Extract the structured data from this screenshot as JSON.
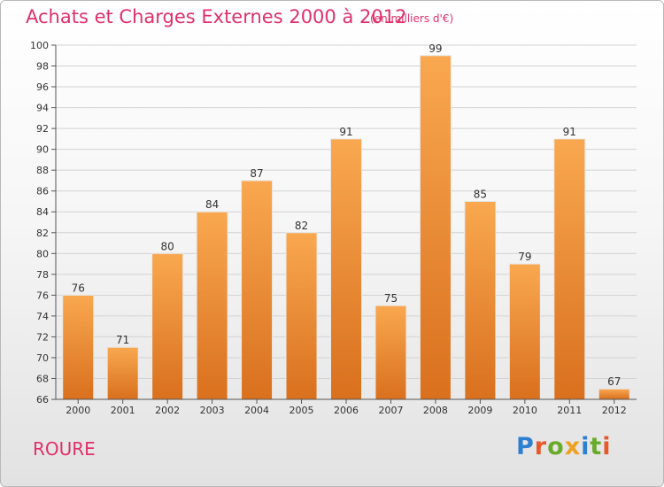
{
  "header": {
    "title": "Achats et Charges Externes 2000 à 2012",
    "unit": "(en milliers d'€)"
  },
  "footer": {
    "commune": "ROURE",
    "logo_letters": [
      "P",
      "r",
      "o",
      "x",
      "i",
      "t",
      "i"
    ],
    "logo_colors": [
      "#2f7fd1",
      "#e8582a",
      "#6aaa2a",
      "#f0a020",
      "#2f7fd1",
      "#6aaa2a",
      "#e8582a"
    ]
  },
  "chart_data": {
    "type": "bar",
    "categories": [
      "2000",
      "2001",
      "2002",
      "2003",
      "2004",
      "2005",
      "2006",
      "2007",
      "2008",
      "2009",
      "2010",
      "2011",
      "2012"
    ],
    "values": [
      76,
      71,
      80,
      84,
      87,
      82,
      91,
      75,
      99,
      85,
      79,
      91,
      67
    ],
    "title": "Achats et Charges Externes 2000 à 2012",
    "xlabel": "",
    "ylabel": "",
    "ylim": [
      66,
      100
    ],
    "yticks": [
      66,
      68,
      70,
      72,
      74,
      76,
      78,
      80,
      82,
      84,
      86,
      88,
      90,
      92,
      94,
      96,
      98,
      100
    ],
    "grid": true,
    "bar_color": "#f0922e"
  }
}
